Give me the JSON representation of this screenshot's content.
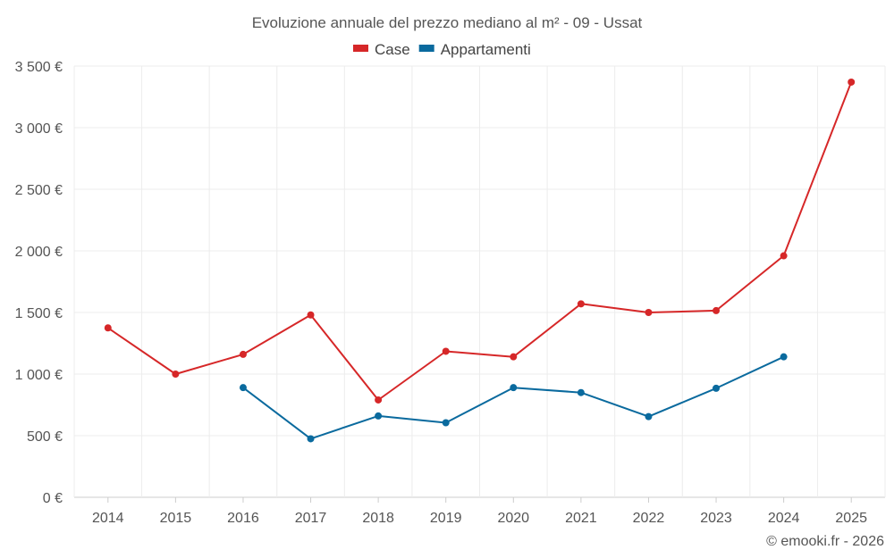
{
  "chart_data": {
    "type": "line",
    "title": "Evoluzione annuale del prezzo mediano al m² - 09 - Ussat",
    "categories": [
      "2014",
      "2015",
      "2016",
      "2017",
      "2018",
      "2019",
      "2020",
      "2021",
      "2022",
      "2023",
      "2024",
      "2025"
    ],
    "series": [
      {
        "name": "Case",
        "color": "#d62728",
        "values": [
          1375,
          1000,
          1160,
          1480,
          790,
          1185,
          1140,
          1570,
          1500,
          1515,
          1960,
          3370
        ]
      },
      {
        "name": "Appartamenti",
        "color": "#0a6a9e",
        "values": [
          null,
          null,
          890,
          475,
          660,
          605,
          890,
          850,
          655,
          885,
          1140,
          null
        ]
      }
    ],
    "ylim": [
      0,
      3500
    ],
    "yticks": [
      0,
      500,
      1000,
      1500,
      2000,
      2500,
      3000,
      3500
    ],
    "ytick_labels": [
      "0 €",
      "500 €",
      "1 000 €",
      "1 500 €",
      "2 000 €",
      "2 500 €",
      "3 000 €",
      "3 500 €"
    ],
    "grid": true,
    "legend": "top-center"
  },
  "credit": "© emooki.fr - 2026"
}
